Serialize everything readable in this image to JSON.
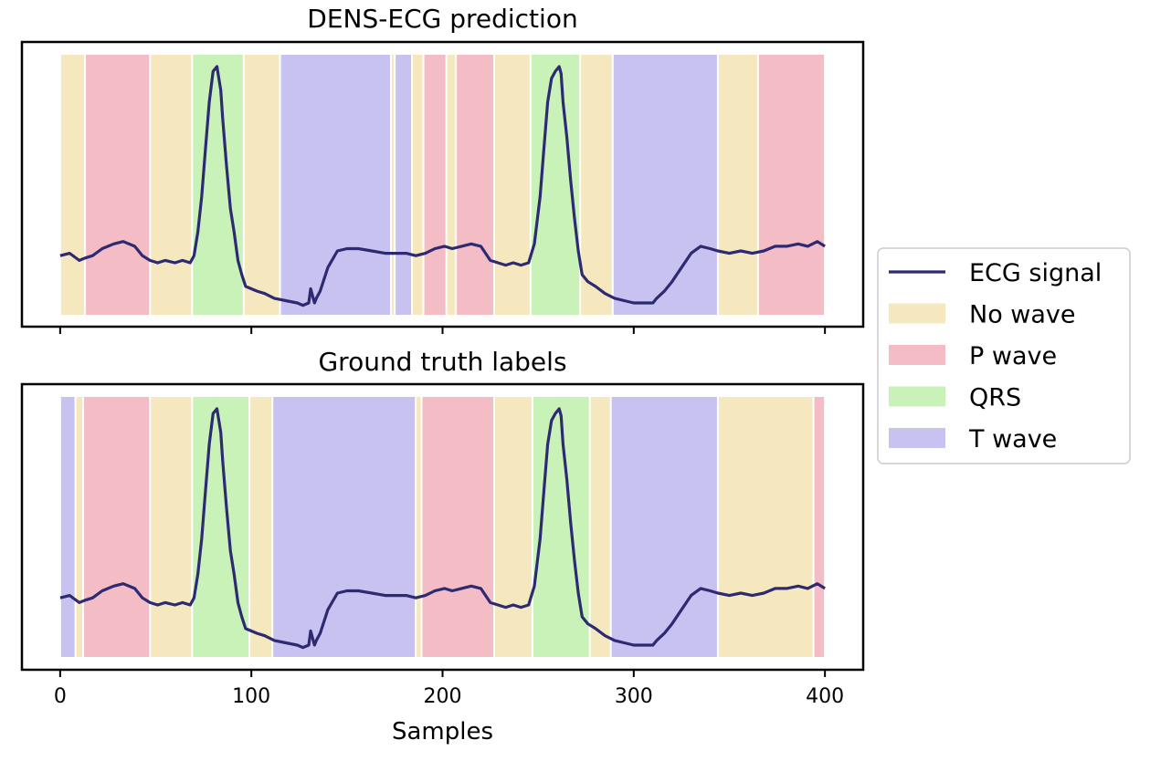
{
  "chart_data": [
    {
      "type": "line",
      "title": "DENS-ECG prediction",
      "xlabel": "",
      "ylabel": "",
      "xlim": [
        -20,
        420
      ],
      "xticks": [
        0,
        100,
        200,
        300,
        400
      ],
      "show_tick_labels": false,
      "segments": [
        {
          "label": "No wave",
          "start": 0,
          "end": 13
        },
        {
          "label": "P wave",
          "start": 13,
          "end": 47
        },
        {
          "label": "No wave",
          "start": 47,
          "end": 69
        },
        {
          "label": "QRS",
          "start": 69,
          "end": 96
        },
        {
          "label": "No wave",
          "start": 96,
          "end": 115
        },
        {
          "label": "T wave",
          "start": 115,
          "end": 173
        },
        {
          "label": "No wave",
          "start": 173,
          "end": 175
        },
        {
          "label": "T wave",
          "start": 175,
          "end": 184
        },
        {
          "label": "No wave",
          "start": 184,
          "end": 190
        },
        {
          "label": "P wave",
          "start": 190,
          "end": 202
        },
        {
          "label": "No wave",
          "start": 202,
          "end": 207
        },
        {
          "label": "P wave",
          "start": 207,
          "end": 227
        },
        {
          "label": "No wave",
          "start": 227,
          "end": 246
        },
        {
          "label": "QRS",
          "start": 246,
          "end": 272
        },
        {
          "label": "No wave",
          "start": 272,
          "end": 289
        },
        {
          "label": "T wave",
          "start": 289,
          "end": 344
        },
        {
          "label": "No wave",
          "start": 344,
          "end": 365
        },
        {
          "label": "P wave",
          "start": 365,
          "end": 400
        }
      ]
    },
    {
      "type": "line",
      "title": "Ground truth labels",
      "xlabel": "Samples",
      "ylabel": "",
      "xlim": [
        -20,
        420
      ],
      "xticks": [
        0,
        100,
        200,
        300,
        400
      ],
      "show_tick_labels": true,
      "segments": [
        {
          "label": "T wave",
          "start": 0,
          "end": 8
        },
        {
          "label": "No wave",
          "start": 8,
          "end": 12
        },
        {
          "label": "P wave",
          "start": 12,
          "end": 47
        },
        {
          "label": "No wave",
          "start": 47,
          "end": 69
        },
        {
          "label": "QRS",
          "start": 69,
          "end": 99
        },
        {
          "label": "No wave",
          "start": 99,
          "end": 111
        },
        {
          "label": "T wave",
          "start": 111,
          "end": 186
        },
        {
          "label": "No wave",
          "start": 186,
          "end": 189
        },
        {
          "label": "P wave",
          "start": 189,
          "end": 227
        },
        {
          "label": "No wave",
          "start": 227,
          "end": 247
        },
        {
          "label": "QRS",
          "start": 247,
          "end": 277
        },
        {
          "label": "No wave",
          "start": 277,
          "end": 288
        },
        {
          "label": "T wave",
          "start": 288,
          "end": 344
        },
        {
          "label": "No wave",
          "start": 344,
          "end": 394
        },
        {
          "label": "P wave",
          "start": 394,
          "end": 400
        }
      ]
    }
  ],
  "signal": {
    "name": "ECG signal",
    "color": "#2e2a72",
    "x": [
      0,
      5,
      10,
      13,
      17,
      22,
      28,
      33,
      39,
      43,
      47,
      51,
      55,
      60,
      64,
      68,
      70,
      72,
      74,
      76,
      78,
      80,
      82,
      84,
      85,
      87,
      89,
      91,
      93,
      95,
      97,
      100,
      103,
      107,
      112,
      118,
      124,
      127,
      130,
      131,
      132,
      133,
      134,
      136,
      140,
      145,
      150,
      156,
      163,
      170,
      176,
      181,
      186,
      191,
      196,
      201,
      205,
      210,
      215,
      220,
      225,
      229,
      233,
      237,
      241,
      245,
      248,
      251,
      253,
      255,
      257,
      259,
      261,
      262,
      263,
      265,
      267,
      269,
      271,
      273,
      276,
      280,
      285,
      290,
      295,
      300,
      305,
      310,
      312,
      316,
      320,
      325,
      330,
      335,
      340,
      344,
      350,
      356,
      362,
      368,
      374,
      380,
      386,
      391,
      396,
      400
    ],
    "y": [
      0.2,
      0.21,
      0.18,
      0.19,
      0.2,
      0.23,
      0.25,
      0.26,
      0.24,
      0.2,
      0.18,
      0.17,
      0.18,
      0.17,
      0.18,
      0.17,
      0.2,
      0.3,
      0.45,
      0.65,
      0.85,
      0.98,
      1.0,
      0.9,
      0.78,
      0.58,
      0.4,
      0.3,
      0.18,
      0.12,
      0.07,
      0.06,
      0.05,
      0.04,
      0.02,
      0.01,
      0.0,
      -0.01,
      0.0,
      0.06,
      0.03,
      0.0,
      0.02,
      0.05,
      0.15,
      0.22,
      0.23,
      0.23,
      0.22,
      0.21,
      0.21,
      0.21,
      0.2,
      0.21,
      0.23,
      0.24,
      0.23,
      0.24,
      0.25,
      0.24,
      0.18,
      0.17,
      0.16,
      0.17,
      0.16,
      0.17,
      0.25,
      0.45,
      0.65,
      0.85,
      0.95,
      0.98,
      1.0,
      0.97,
      0.85,
      0.7,
      0.52,
      0.36,
      0.22,
      0.12,
      0.09,
      0.07,
      0.04,
      0.02,
      0.01,
      0.0,
      0.0,
      0.0,
      0.02,
      0.05,
      0.09,
      0.15,
      0.21,
      0.24,
      0.23,
      0.22,
      0.21,
      0.22,
      0.21,
      0.22,
      0.24,
      0.24,
      0.25,
      0.24,
      0.26,
      0.24
    ]
  },
  "legend": {
    "placement": "right",
    "entries": [
      {
        "label": "ECG signal",
        "kind": "line",
        "color": "#2e2a72"
      },
      {
        "label": "No wave",
        "kind": "patch",
        "color": "#f5e8be"
      },
      {
        "label": "P wave",
        "kind": "patch",
        "color": "#f4bcc4"
      },
      {
        "label": "QRS",
        "kind": "patch",
        "color": "#c8f2b8"
      },
      {
        "label": "T wave",
        "kind": "patch",
        "color": "#c7c2ef"
      }
    ]
  },
  "colors": {
    "No wave": "#f5e8be",
    "P wave": "#f4bcc4",
    "QRS": "#c8f2b8",
    "T wave": "#c7c2ef"
  }
}
